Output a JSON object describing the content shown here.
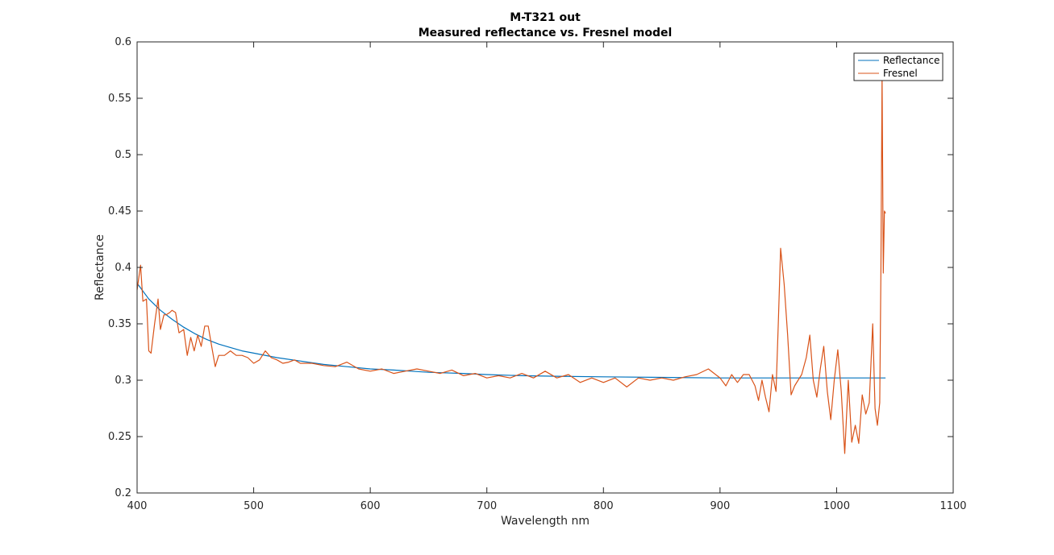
{
  "chart_data": {
    "type": "line",
    "title": "M-T321 out",
    "subtitle": "Measured reflectance vs. Fresnel model",
    "xlabel": "Wavelength nm",
    "ylabel": "Reflectance",
    "xlim": [
      400,
      1100
    ],
    "ylim": [
      0.2,
      0.6
    ],
    "xticks": [
      400,
      500,
      600,
      700,
      800,
      900,
      1000,
      1100
    ],
    "xtick_labels": [
      "400",
      "500",
      "600",
      "700",
      "800",
      "900",
      "1000",
      "1100"
    ],
    "yticks": [
      0.2,
      0.25,
      0.3,
      0.35,
      0.4,
      0.45,
      0.5,
      0.55,
      0.6
    ],
    "ytick_labels": [
      "0.2",
      "0.25",
      "0.3",
      "0.35",
      "0.4",
      "0.45",
      "0.5",
      "0.55",
      "0.6"
    ],
    "grid": false,
    "legend_position": "top-right",
    "series": [
      {
        "name": "Reflectance",
        "color": "#0072BD",
        "x": [
          400,
          410,
          420,
          430,
          440,
          450,
          460,
          470,
          480,
          490,
          500,
          520,
          540,
          560,
          580,
          600,
          620,
          650,
          680,
          700,
          730,
          760,
          800,
          850,
          900,
          950,
          1000,
          1042
        ],
        "y": [
          0.386,
          0.372,
          0.362,
          0.354,
          0.347,
          0.341,
          0.336,
          0.332,
          0.329,
          0.326,
          0.324,
          0.32,
          0.317,
          0.314,
          0.312,
          0.31,
          0.309,
          0.307,
          0.306,
          0.305,
          0.304,
          0.3035,
          0.303,
          0.3025,
          0.302,
          0.302,
          0.302,
          0.302
        ]
      },
      {
        "name": "Fresnel",
        "color": "#D95319",
        "x": [
          400,
          403,
          405,
          408,
          410,
          412,
          415,
          418,
          420,
          423,
          425,
          428,
          430,
          433,
          436,
          440,
          443,
          446,
          449,
          452,
          455,
          458,
          461,
          464,
          467,
          470,
          475,
          480,
          485,
          490,
          495,
          500,
          505,
          510,
          515,
          520,
          525,
          530,
          535,
          540,
          550,
          560,
          570,
          580,
          590,
          600,
          610,
          620,
          630,
          640,
          650,
          660,
          670,
          680,
          690,
          700,
          710,
          720,
          730,
          740,
          750,
          760,
          770,
          780,
          790,
          800,
          810,
          820,
          830,
          840,
          850,
          860,
          870,
          880,
          890,
          900,
          905,
          910,
          915,
          920,
          925,
          930,
          933,
          936,
          939,
          942,
          945,
          948,
          950,
          952,
          955,
          958,
          961,
          964,
          967,
          970,
          974,
          977,
          980,
          983,
          986,
          989,
          992,
          995,
          998,
          1001,
          1004,
          1007,
          1010,
          1013,
          1016,
          1019,
          1022,
          1025,
          1028,
          1031,
          1033,
          1035,
          1037,
          1038,
          1039,
          1040,
          1041,
          1042
        ],
        "y": [
          0.38,
          0.402,
          0.37,
          0.372,
          0.326,
          0.324,
          0.35,
          0.372,
          0.345,
          0.358,
          0.358,
          0.36,
          0.362,
          0.36,
          0.342,
          0.345,
          0.322,
          0.338,
          0.326,
          0.34,
          0.33,
          0.348,
          0.348,
          0.33,
          0.312,
          0.322,
          0.322,
          0.326,
          0.322,
          0.322,
          0.32,
          0.315,
          0.318,
          0.326,
          0.32,
          0.318,
          0.315,
          0.316,
          0.318,
          0.315,
          0.315,
          0.313,
          0.312,
          0.316,
          0.31,
          0.308,
          0.31,
          0.306,
          0.308,
          0.31,
          0.308,
          0.306,
          0.309,
          0.304,
          0.306,
          0.302,
          0.304,
          0.302,
          0.306,
          0.302,
          0.308,
          0.302,
          0.305,
          0.298,
          0.302,
          0.298,
          0.302,
          0.294,
          0.302,
          0.3,
          0.302,
          0.3,
          0.303,
          0.305,
          0.31,
          0.302,
          0.295,
          0.305,
          0.298,
          0.305,
          0.305,
          0.295,
          0.282,
          0.3,
          0.285,
          0.272,
          0.305,
          0.29,
          0.35,
          0.417,
          0.385,
          0.34,
          0.287,
          0.295,
          0.3,
          0.305,
          0.32,
          0.34,
          0.3,
          0.285,
          0.31,
          0.33,
          0.29,
          0.265,
          0.3,
          0.327,
          0.29,
          0.235,
          0.3,
          0.245,
          0.26,
          0.244,
          0.287,
          0.27,
          0.28,
          0.35,
          0.275,
          0.26,
          0.28,
          0.4,
          0.57,
          0.395,
          0.45,
          0.448
        ]
      }
    ]
  }
}
